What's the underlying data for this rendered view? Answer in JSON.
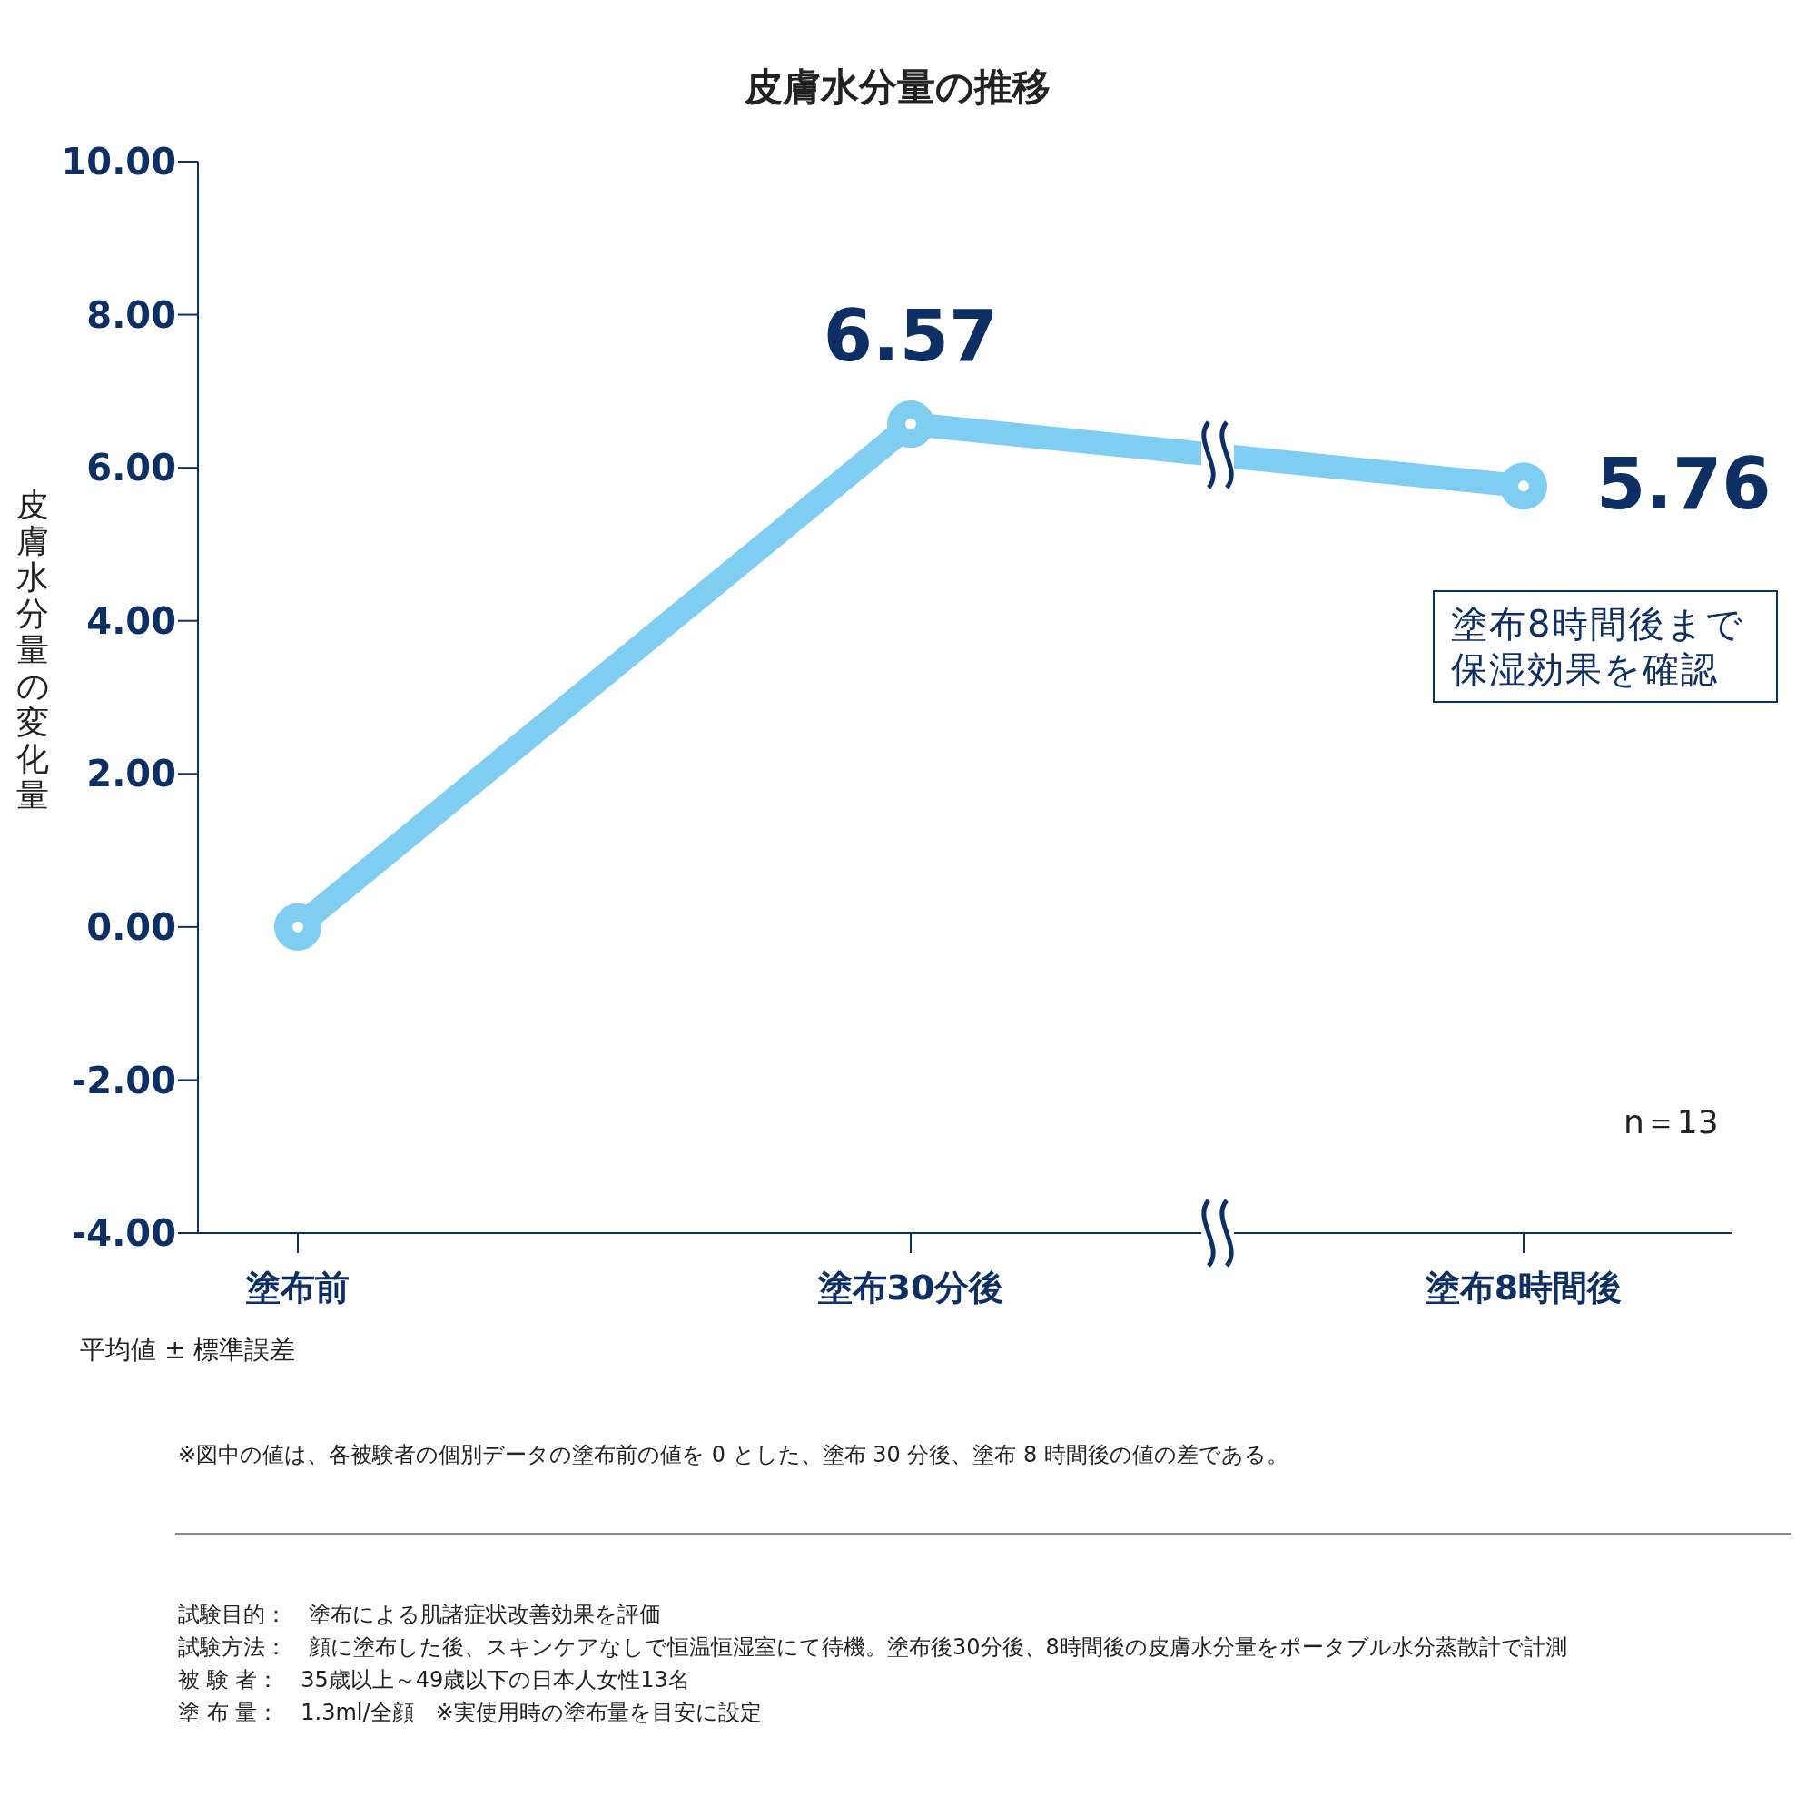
{
  "chart_data": {
    "type": "line",
    "title": "皮膚水分量の推移",
    "ylabel": "皮膚水分量の変化量",
    "categories": [
      "塗布前",
      "塗布30分後",
      "塗布8時間後"
    ],
    "values": [
      0,
      6.57,
      5.76
    ],
    "value_labels": [
      null,
      "6.57",
      "5.76"
    ],
    "color": "#80cdf2",
    "marker": "circle",
    "line_style": "solid",
    "ylim": [
      -4,
      10
    ],
    "yticks": [
      {
        "value": -4,
        "label": "-4.00"
      },
      {
        "value": -2,
        "label": "-2.00"
      },
      {
        "value": 0,
        "label": "0.00"
      },
      {
        "value": 2,
        "label": "2.00"
      },
      {
        "value": 4,
        "label": "4.00"
      },
      {
        "value": 6,
        "label": "6.00"
      },
      {
        "value": 8,
        "label": "8.00"
      },
      {
        "value": 10,
        "label": "10.00"
      }
    ],
    "grid": false,
    "legend": false,
    "annotations": [
      "塗布8時間後まで保湿効果を確認",
      "n＝13",
      "平均値 ± 標準誤差",
      "※図中の値は、各被験者の個別データの塗布前の値を 0 とした、塗布 30 分後、塗布 8 時間後の値の差である。",
      "試験目的：　塗布による肌諸症状改善効果を評価",
      "試験方法：　顔に塗布した後、スキンケアなしで恒温恒湿室にて待機。塗布後30分後、8時間後の皮膚水分量をポータブル水分蒸散計で計測",
      "被 験 者：　35歳以上～49歳以下の日本人女性13名",
      "塗 布 量：　1.3ml/全顔　※実使用時の塗布量を目安に設定"
    ]
  }
}
